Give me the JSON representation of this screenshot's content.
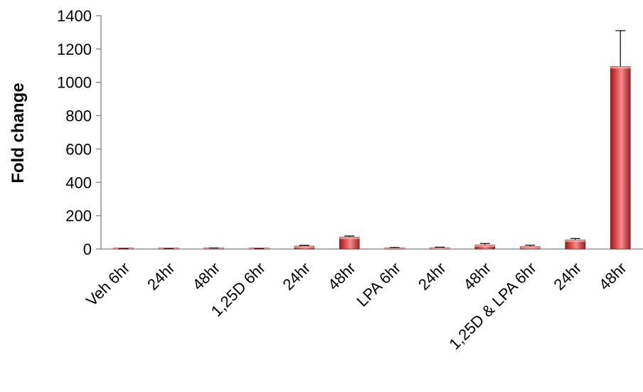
{
  "chart_data": {
    "type": "bar",
    "title": "",
    "xlabel": "",
    "ylabel": "Fold change",
    "ylim": [
      0,
      1400
    ],
    "yticks": [
      0,
      200,
      400,
      600,
      800,
      1000,
      1200,
      1400
    ],
    "grid": false,
    "legend": "none",
    "categories": [
      "Veh 6hr",
      "24hr",
      "48hr",
      "1,25D 6hr",
      "24hr",
      "48hr",
      "LPA 6hr",
      "24hr",
      "48hr",
      "1,25D & LPA 6hr",
      "24hr",
      "48hr"
    ],
    "values": [
      1,
      1,
      3,
      1,
      18,
      72,
      4,
      8,
      25,
      15,
      55,
      1095
    ],
    "errors": [
      1,
      1,
      3,
      1,
      4,
      6,
      5,
      3,
      8,
      8,
      8,
      215
    ],
    "colors": {
      "bar_light": "#f08a8a",
      "bar_mid": "#d63a3a",
      "bar_dark": "#8e1414",
      "axis": "#808080"
    }
  }
}
